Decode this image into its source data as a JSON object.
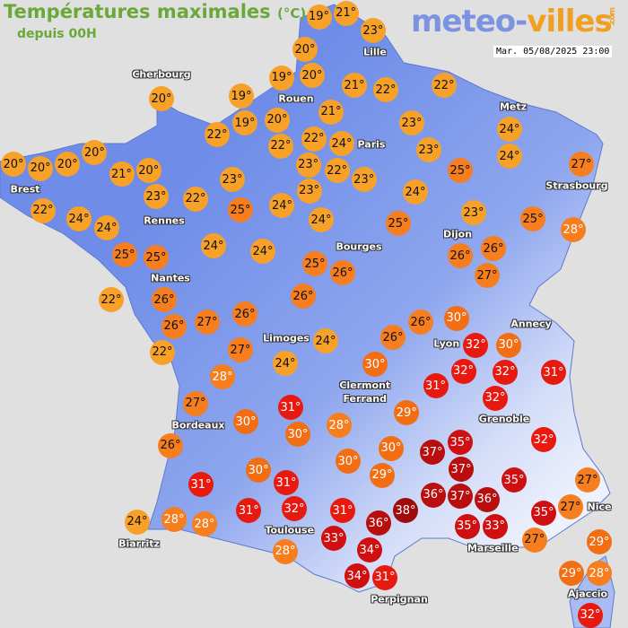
{
  "header": {
    "title": "Températures maximales",
    "unit": "(°C)",
    "subtitle": "depuis 00H",
    "logo": {
      "part1": "meteo-",
      "part2": "villes",
      "suffix": ".com"
    },
    "datetime": "Mar. 05/08/2025 23:00"
  },
  "colors": {
    "background": "#e0e0e0",
    "land": "#6f8de8",
    "title": "#6aa83a",
    "temp_le24": "#f7a128",
    "temp_25_28": "#f67e1e",
    "temp_29_30": "#f26e14",
    "temp_31_32": "#e8190f",
    "temp_33_35": "#d01010",
    "temp_36_37": "#b80e0e",
    "temp_38": "#a00b0b"
  },
  "cities": [
    "Lille",
    "Cherbourg",
    "Rouen",
    "Metz",
    "Paris",
    "Brest",
    "Strasbourg",
    "Rennes",
    "Dijon",
    "Bourges",
    "Nantes",
    "Annecy",
    "Limoges",
    "Lyon",
    "Clermont Ferrand",
    "Grenoble",
    "Bordeaux",
    "Toulouse",
    "Biarritz",
    "Marseille",
    "Nice",
    "Perpignan",
    "Ajaccio"
  ],
  "temperatures": [
    19,
    21,
    20,
    23,
    20,
    19,
    20,
    19,
    19,
    21,
    22,
    22,
    20,
    21,
    23,
    24,
    22,
    22,
    22,
    24,
    23,
    24,
    20,
    20,
    20,
    20,
    21,
    20,
    23,
    22,
    23,
    23,
    27,
    25,
    22,
    23,
    22,
    23,
    25,
    24,
    24,
    24,
    24,
    24,
    25,
    23,
    25,
    28,
    24,
    24,
    25,
    25,
    25,
    26,
    26,
    26,
    27,
    22,
    26,
    26,
    26,
    26,
    27,
    22,
    27,
    24,
    26,
    26,
    30,
    32,
    30,
    28,
    24,
    30,
    32,
    32,
    31,
    31,
    32,
    27,
    30,
    31,
    30,
    28,
    29,
    26,
    32,
    30,
    30,
    30,
    29,
    37,
    35,
    37,
    35,
    31,
    31,
    37,
    36,
    27,
    27,
    28,
    31,
    32,
    31,
    38,
    36,
    35,
    35,
    24,
    28,
    36,
    33,
    33,
    27,
    29,
    28,
    34,
    34,
    31,
    29,
    28,
    32
  ]
}
